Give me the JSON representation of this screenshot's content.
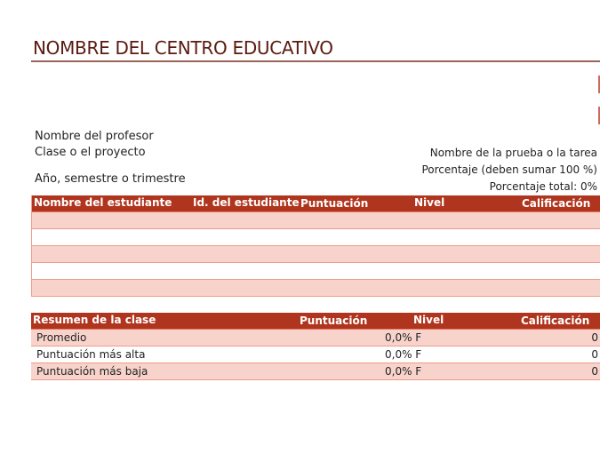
{
  "title": "NOMBRE DEL CENTRO EDUCATIVO",
  "info": {
    "teacher": "Nombre del profesor",
    "class": "Clase o el proyecto",
    "term": "Año, semestre o trimestre",
    "test_name": "Nombre de la prueba o la tarea",
    "percentage": "Porcentaje (deben sumar 100 %)",
    "total": "Porcentaje total: 0%"
  },
  "students": {
    "headers": [
      "Nombre del estudiante",
      "Id. del estudiante",
      "Puntuación",
      "Nivel",
      "Calificación"
    ],
    "row_count": 5
  },
  "summary": {
    "headers": [
      "Resumen de la clase",
      "Puntuación",
      "Nivel",
      "Calificación"
    ],
    "rows": [
      {
        "label": "Promedio",
        "score": "0,0% F",
        "grade": "0"
      },
      {
        "label": "Puntuación más alta",
        "score": "0,0% F",
        "grade": "0"
      },
      {
        "label": "Puntuación más baja",
        "score": "0,0% F",
        "grade": "0"
      }
    ]
  },
  "colors": {
    "header": "#b0351e",
    "band": "#f8d3cb"
  }
}
